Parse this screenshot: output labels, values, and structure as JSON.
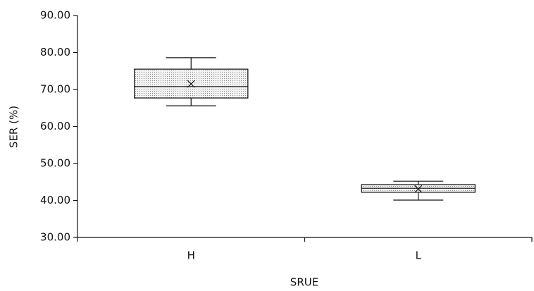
{
  "chart_data": {
    "type": "box",
    "ylabel": "SER (%)",
    "xlabel": "SRUE",
    "categories": [
      "H",
      "L"
    ],
    "min": [
      65.6,
      40.1
    ],
    "q1": [
      67.7,
      42.2
    ],
    "median": [
      70.8,
      43.3
    ],
    "q3": [
      75.5,
      44.3
    ],
    "max": [
      78.6,
      45.2
    ],
    "mean": [
      71.5,
      43.1
    ],
    "color": "#e4e4e4",
    "ylim": [
      30,
      90
    ],
    "yticks": [
      {
        "value": 30,
        "label": "30.00"
      },
      {
        "value": 40,
        "label": "40.00"
      },
      {
        "value": 50,
        "label": "50.00"
      },
      {
        "value": 60,
        "label": "60.00"
      },
      {
        "value": 70,
        "label": "70.00"
      },
      {
        "value": 80,
        "label": "80.00"
      },
      {
        "value": 90,
        "label": "90.00"
      }
    ],
    "grid": false
  }
}
